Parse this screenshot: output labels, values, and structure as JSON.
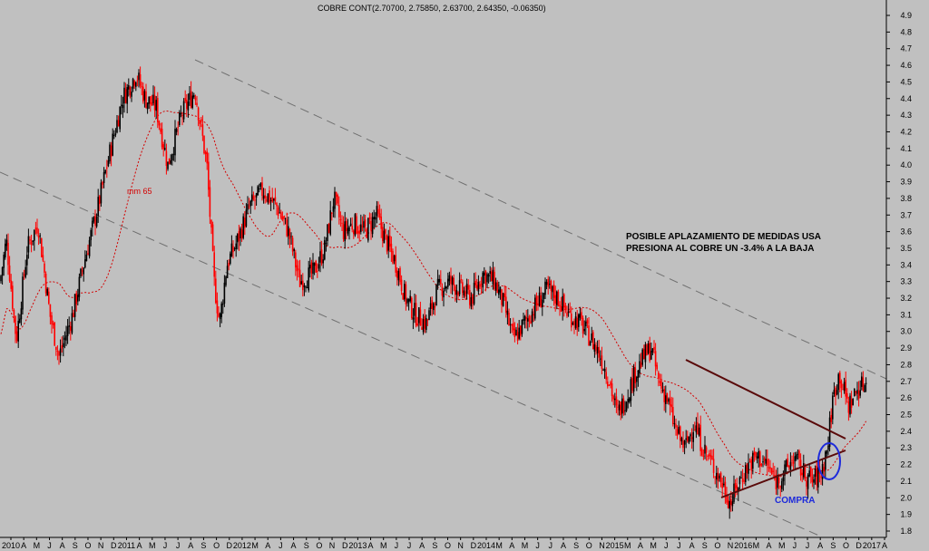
{
  "chart_data": {
    "type": "candlestick",
    "title": "COBRE CONT(2.70700, 2.75850, 2.63700, 2.64350, -0.06350)",
    "ylim": [
      1.75,
      4.95
    ],
    "y_ticks": [
      "1.8",
      "1.9",
      "2.0",
      "2.1",
      "2.2",
      "2.3",
      "2.4",
      "2.5",
      "2.6",
      "2.7",
      "2.8",
      "2.9",
      "3.0",
      "3.1",
      "3.2",
      "3.3",
      "3.4",
      "3.5",
      "3.6",
      "3.7",
      "3.8",
      "3.9",
      "4.0",
      "4.1",
      "4.2",
      "4.3",
      "4.4",
      "4.5",
      "4.6",
      "4.7",
      "4.8",
      "4.9"
    ],
    "x_ticks": [
      "2010",
      "A",
      "M",
      "J",
      "A",
      "S",
      "O",
      "N",
      "D",
      "2011",
      "A",
      "M",
      "J",
      "J",
      "A",
      "S",
      "O",
      "D",
      "2012",
      "M",
      "A",
      "J",
      "A",
      "S",
      "O",
      "N",
      "D",
      "2013",
      "A",
      "M",
      "J",
      "J",
      "A",
      "S",
      "O",
      "N",
      "D",
      "2014",
      "M",
      "A",
      "M",
      "J",
      "J",
      "A",
      "S",
      "O",
      "N",
      "2015",
      "M",
      "A",
      "M",
      "J",
      "J",
      "A",
      "S",
      "O",
      "N",
      "2016",
      "M",
      "A",
      "M",
      "J",
      "J",
      "A",
      "S",
      "O",
      "D",
      "2017",
      "A"
    ],
    "price_path": [
      [
        0,
        3.3
      ],
      [
        7,
        3.55
      ],
      [
        18,
        2.95
      ],
      [
        30,
        3.5
      ],
      [
        42,
        3.65
      ],
      [
        55,
        3.1
      ],
      [
        65,
        2.85
      ],
      [
        80,
        3.1
      ],
      [
        92,
        3.4
      ],
      [
        108,
        3.75
      ],
      [
        120,
        4.05
      ],
      [
        135,
        4.4
      ],
      [
        150,
        4.55
      ],
      [
        160,
        4.4
      ],
      [
        172,
        4.35
      ],
      [
        185,
        4.0
      ],
      [
        200,
        4.3
      ],
      [
        215,
        4.45
      ],
      [
        228,
        4.0
      ],
      [
        236,
        3.3
      ],
      [
        242,
        3.05
      ],
      [
        250,
        3.4
      ],
      [
        262,
        3.55
      ],
      [
        275,
        3.75
      ],
      [
        290,
        3.85
      ],
      [
        305,
        3.75
      ],
      [
        318,
        3.6
      ],
      [
        330,
        3.3
      ],
      [
        345,
        3.35
      ],
      [
        358,
        3.5
      ],
      [
        368,
        3.8
      ],
      [
        378,
        3.6
      ],
      [
        390,
        3.65
      ],
      [
        402,
        3.6
      ],
      [
        415,
        3.7
      ],
      [
        425,
        3.55
      ],
      [
        437,
        3.4
      ],
      [
        447,
        3.2
      ],
      [
        458,
        3.1
      ],
      [
        470,
        3.05
      ],
      [
        482,
        3.25
      ],
      [
        495,
        3.3
      ],
      [
        508,
        3.25
      ],
      [
        520,
        3.2
      ],
      [
        532,
        3.35
      ],
      [
        545,
        3.3
      ],
      [
        556,
        3.15
      ],
      [
        566,
        2.95
      ],
      [
        578,
        3.05
      ],
      [
        590,
        3.15
      ],
      [
        603,
        3.25
      ],
      [
        615,
        3.2
      ],
      [
        627,
        3.1
      ],
      [
        640,
        3.05
      ],
      [
        652,
        2.95
      ],
      [
        662,
        2.85
      ],
      [
        672,
        2.7
      ],
      [
        680,
        2.5
      ],
      [
        690,
        2.6
      ],
      [
        700,
        2.75
      ],
      [
        710,
        2.85
      ],
      [
        718,
        2.9
      ],
      [
        726,
        2.7
      ],
      [
        735,
        2.6
      ],
      [
        745,
        2.4
      ],
      [
        755,
        2.3
      ],
      [
        765,
        2.45
      ],
      [
        775,
        2.3
      ],
      [
        785,
        2.2
      ],
      [
        795,
        2.1
      ],
      [
        805,
        1.97
      ],
      [
        815,
        2.1
      ],
      [
        825,
        2.2
      ],
      [
        835,
        2.25
      ],
      [
        845,
        2.2
      ],
      [
        855,
        2.1
      ],
      [
        865,
        2.15
      ],
      [
        875,
        2.25
      ],
      [
        885,
        2.15
      ],
      [
        895,
        2.1
      ],
      [
        905,
        2.15
      ],
      [
        912,
        2.3
      ],
      [
        918,
        2.6
      ],
      [
        925,
        2.75
      ],
      [
        935,
        2.55
      ],
      [
        945,
        2.65
      ],
      [
        955,
        2.7
      ]
    ],
    "ma_label": "mm 65",
    "annotations": [
      "POSIBLE APLAZAMIENTO DE MEDIDAS USA",
      "PRESIONA AL COBRE UN -3.4% A LA BAJA"
    ],
    "buy_label": "COMPRA",
    "colors": {
      "background": "#c0c0c0",
      "up": "#000000",
      "down": "#ff0000",
      "ma": "#d40000",
      "channel": "#707070",
      "triangle": "#5a0a0a",
      "marker": "#1d2adb",
      "text": "#000000"
    }
  }
}
